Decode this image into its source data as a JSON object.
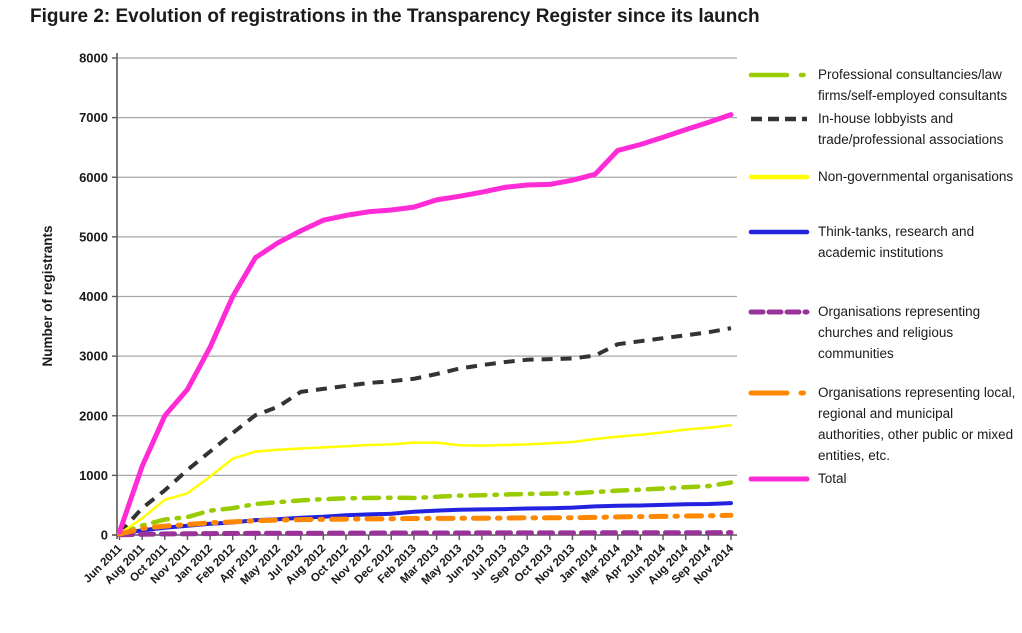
{
  "title": "Figure 2: Evolution of registrations in the Transparency Register since its launch",
  "chart_data": {
    "type": "line",
    "title": "Figure 2: Evolution of registrations in the Transparency Register since its launch",
    "xlabel": "",
    "ylabel": "Number of registrants",
    "ylim": [
      0,
      8000
    ],
    "yticks": [
      0,
      1000,
      2000,
      3000,
      4000,
      5000,
      6000,
      7000,
      8000
    ],
    "grid": true,
    "legend_position": "right",
    "colors": {
      "axis": "#595959",
      "grid": "#A6A6A6",
      "text": "#1A1A1A",
      "background": "#FFFFFF"
    },
    "categories": [
      "Jun 2011",
      "Aug 2011",
      "Oct 2011",
      "Nov 2011",
      "Jan 2012",
      "Feb 2012",
      "Apr 2012",
      "May 2012",
      "Jul 2012",
      "Aug 2012",
      "Oct 2012",
      "Nov 2012",
      "Dec 2012",
      "Feb 2013",
      "Mar 2013",
      "May 2013",
      "Jun 2013",
      "Jul 2013",
      "Sep 2013",
      "Oct 2013",
      "Nov 2013",
      "Jan 2014",
      "Mar 2014",
      "Apr 2014",
      "Jun 2014",
      "Aug 2014",
      "Sep 2014",
      "Nov 2014"
    ],
    "series": [
      {
        "name": "Professional consultancies/law firms/self-employed consultants",
        "slug": "professional-consultancies",
        "color": "#99CC00",
        "line_style": "dash-dot",
        "line_width": 4.5,
        "values": [
          20,
          160,
          260,
          300,
          410,
          450,
          520,
          550,
          580,
          600,
          615,
          620,
          625,
          620,
          640,
          660,
          665,
          680,
          690,
          695,
          700,
          720,
          745,
          760,
          780,
          800,
          820,
          880
        ]
      },
      {
        "name": "In-house lobbyists and trade/professional associations",
        "slug": "in-house-lobbyists",
        "color": "#333333",
        "line_style": "dashed",
        "line_width": 4,
        "values": [
          30,
          450,
          750,
          1090,
          1400,
          1710,
          2010,
          2150,
          2400,
          2450,
          2500,
          2550,
          2580,
          2620,
          2700,
          2790,
          2850,
          2900,
          2940,
          2950,
          2960,
          3010,
          3200,
          3250,
          3300,
          3350,
          3400,
          3470
        ]
      },
      {
        "name": "Non-governmental organisations",
        "slug": "ngos",
        "color": "#FFFF00",
        "line_style": "solid",
        "line_width": 2.5,
        "values": [
          20,
          280,
          590,
          700,
          980,
          1280,
          1400,
          1430,
          1450,
          1470,
          1490,
          1510,
          1520,
          1550,
          1550,
          1505,
          1500,
          1510,
          1520,
          1540,
          1560,
          1610,
          1650,
          1680,
          1720,
          1770,
          1800,
          1840
        ]
      },
      {
        "name": "Think-tanks, research and academic institutions",
        "slug": "think-tanks",
        "color": "#2222E0",
        "line_style": "solid",
        "line_width": 4,
        "values": [
          10,
          80,
          120,
          155,
          190,
          210,
          250,
          265,
          290,
          305,
          330,
          345,
          355,
          390,
          410,
          425,
          430,
          435,
          445,
          450,
          460,
          480,
          490,
          495,
          505,
          515,
          520,
          535
        ]
      },
      {
        "name": "Organisations representing churches and religious communities",
        "slug": "churches",
        "color": "#993399",
        "line_style": "dashed",
        "line_width": 5,
        "values": [
          3,
          12,
          18,
          20,
          24,
          26,
          28,
          29,
          30,
          31,
          32,
          32,
          33,
          33,
          34,
          34,
          35,
          35,
          36,
          36,
          36,
          37,
          37,
          38,
          38,
          39,
          39,
          40
        ]
      },
      {
        "name": "Organisations representing local, regional and municipal authorities, other public or mixed entities, etc.",
        "slug": "local-authorities",
        "color": "#FF8800",
        "line_style": "dash-dot",
        "line_width": 5,
        "values": [
          15,
          110,
          150,
          175,
          205,
          220,
          240,
          250,
          258,
          262,
          266,
          270,
          272,
          276,
          278,
          280,
          282,
          284,
          286,
          288,
          290,
          296,
          304,
          308,
          312,
          318,
          322,
          330
        ]
      },
      {
        "name": "Total",
        "slug": "total",
        "color": "#FF2BD6",
        "line_style": "solid",
        "line_width": 5,
        "values": [
          50,
          1150,
          2000,
          2440,
          3150,
          4000,
          4650,
          4900,
          5100,
          5280,
          5360,
          5420,
          5450,
          5500,
          5620,
          5680,
          5750,
          5830,
          5870,
          5880,
          5950,
          6050,
          6450,
          6550,
          6670,
          6800,
          6920,
          7050
        ]
      }
    ]
  }
}
